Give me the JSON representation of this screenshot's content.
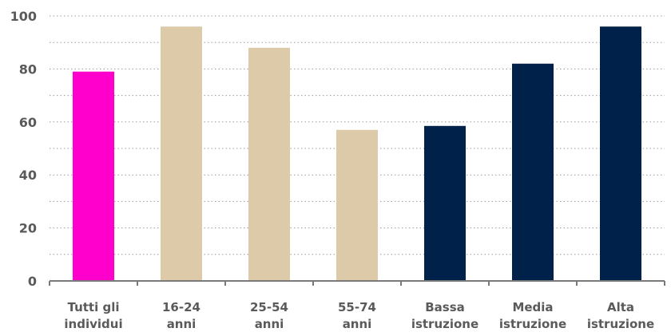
{
  "chart_data": {
    "type": "bar",
    "categories": [
      [
        "Tutti gli",
        "individui"
      ],
      [
        "16-24",
        "anni"
      ],
      [
        "25-54",
        "anni"
      ],
      [
        "55-74",
        "anni"
      ],
      [
        "Bassa",
        "istruzione"
      ],
      [
        "Media",
        "istruzione"
      ],
      [
        "Alta",
        "istruzione"
      ]
    ],
    "values": [
      79,
      96,
      88,
      57,
      58.5,
      82,
      96
    ],
    "bar_colors": [
      "#ff00cc",
      "#dccaa8",
      "#dccaa8",
      "#dccaa8",
      "#00214a",
      "#00214a",
      "#00214a"
    ],
    "ylim": [
      0,
      100
    ],
    "yticks": [
      0,
      20,
      40,
      60,
      80,
      100
    ],
    "minor_grid_step": 10,
    "grid": true,
    "title": "",
    "xlabel": "",
    "ylabel": ""
  }
}
